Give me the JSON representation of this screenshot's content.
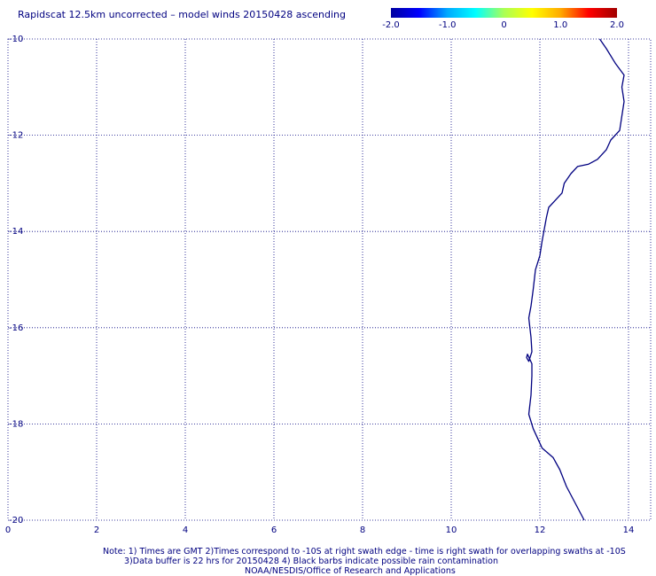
{
  "title": "Rapidscat 12.5km uncorrected – model winds 20150428 ascending",
  "colorbar": {
    "ticks": [
      "-2.0",
      "-1.0",
      "0",
      "1.0",
      "2.0"
    ],
    "range": [
      -2.0,
      2.0
    ],
    "colors": [
      "#0000a0",
      "#0000ff",
      "#00aaff",
      "#00ffff",
      "#aaff55",
      "#ffff00",
      "#ffaa00",
      "#ff0000",
      "#a00000"
    ]
  },
  "map": {
    "x_range": [
      0,
      14.5
    ],
    "y_range": [
      -20,
      -10
    ],
    "x_ticks": [
      0,
      2,
      4,
      6,
      8,
      10,
      12,
      14
    ],
    "x_tick_labels": [
      "0",
      "2",
      "4",
      "6",
      "8",
      "10",
      "12",
      "14"
    ],
    "y_ticks": [
      -10,
      -12,
      -14,
      -16,
      -18,
      -20
    ],
    "y_tick_labels": [
      "-10",
      "-12",
      "-14",
      "-16",
      "-18",
      "-20"
    ],
    "grid": "dotted",
    "line_color": "#000080",
    "coastline": [
      [
        13.35,
        -10.0
      ],
      [
        13.5,
        -10.2
      ],
      [
        13.7,
        -10.5
      ],
      [
        13.9,
        -10.75
      ],
      [
        13.85,
        -11.0
      ],
      [
        13.9,
        -11.3
      ],
      [
        13.85,
        -11.6
      ],
      [
        13.8,
        -11.9
      ],
      [
        13.6,
        -12.1
      ],
      [
        13.5,
        -12.3
      ],
      [
        13.3,
        -12.5
      ],
      [
        13.1,
        -12.6
      ],
      [
        12.85,
        -12.65
      ],
      [
        12.7,
        -12.8
      ],
      [
        12.55,
        -13.0
      ],
      [
        12.5,
        -13.2
      ],
      [
        12.35,
        -13.35
      ],
      [
        12.2,
        -13.5
      ],
      [
        12.15,
        -13.7
      ],
      [
        12.1,
        -13.95
      ],
      [
        12.05,
        -14.2
      ],
      [
        12.0,
        -14.5
      ],
      [
        11.9,
        -14.8
      ],
      [
        11.85,
        -15.2
      ],
      [
        11.8,
        -15.55
      ],
      [
        11.75,
        -15.8
      ],
      [
        11.8,
        -16.2
      ],
      [
        11.82,
        -16.5
      ],
      [
        11.75,
        -16.7
      ],
      [
        11.7,
        -16.62
      ],
      [
        11.72,
        -16.55
      ],
      [
        11.82,
        -16.75
      ],
      [
        11.82,
        -17.0
      ],
      [
        11.8,
        -17.4
      ],
      [
        11.75,
        -17.8
      ],
      [
        11.85,
        -18.1
      ],
      [
        11.95,
        -18.3
      ],
      [
        12.05,
        -18.5
      ],
      [
        12.3,
        -18.7
      ],
      [
        12.45,
        -18.95
      ],
      [
        12.6,
        -19.3
      ],
      [
        12.8,
        -19.65
      ],
      [
        13.0,
        -20.0
      ]
    ]
  },
  "note": {
    "line1": "Note: 1) Times are GMT 2)Times correspond to -10S at right swath edge - time is right swath for overlapping swaths at -10S",
    "line2": "3)Data buffer is 22 hrs for 20150428 4) Black barbs indicate possible rain contamination",
    "line3": "NOAA/NESDIS/Office of Research and Applications"
  }
}
